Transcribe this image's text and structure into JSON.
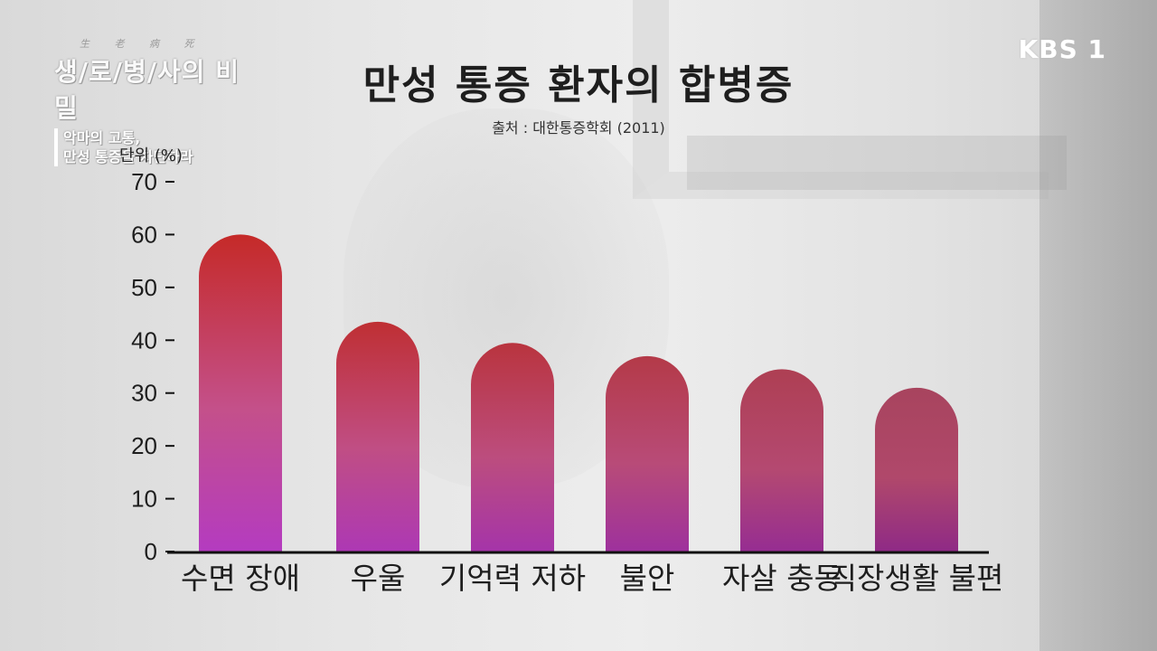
{
  "overlay": {
    "program_small": "生 老 病 死",
    "program_title": "생/로/병/사의 비밀",
    "episode_line1": "악마의 고통,",
    "episode_line2": "만성 통증을 차단하라",
    "broadcaster": "KBS 1"
  },
  "colors": {
    "bar_top": "#c52a28",
    "bar_mid": "#c4508a",
    "bar_bottom": "#b43bc0",
    "bar_right_top": "#a8445e",
    "bar_right_bottom": "#8f2a86",
    "axis": "#111111",
    "text": "#1e1e1e"
  },
  "chart_data": {
    "type": "bar",
    "title": "만성 통증 환자의 합병증",
    "subtitle": "출처 : 대한통증학회 (2011)",
    "ylabel": "단위 (%)",
    "categories": [
      "수면 장애",
      "우울",
      "기억력 저하",
      "불안",
      "자살 충동",
      "직장생활 불편"
    ],
    "values": [
      60,
      43.5,
      39.5,
      37,
      34.5,
      31
    ],
    "ylim": [
      0,
      70
    ],
    "yticks": [
      0,
      10,
      20,
      30,
      40,
      50,
      60,
      70
    ],
    "grid": false,
    "legend": "none"
  }
}
